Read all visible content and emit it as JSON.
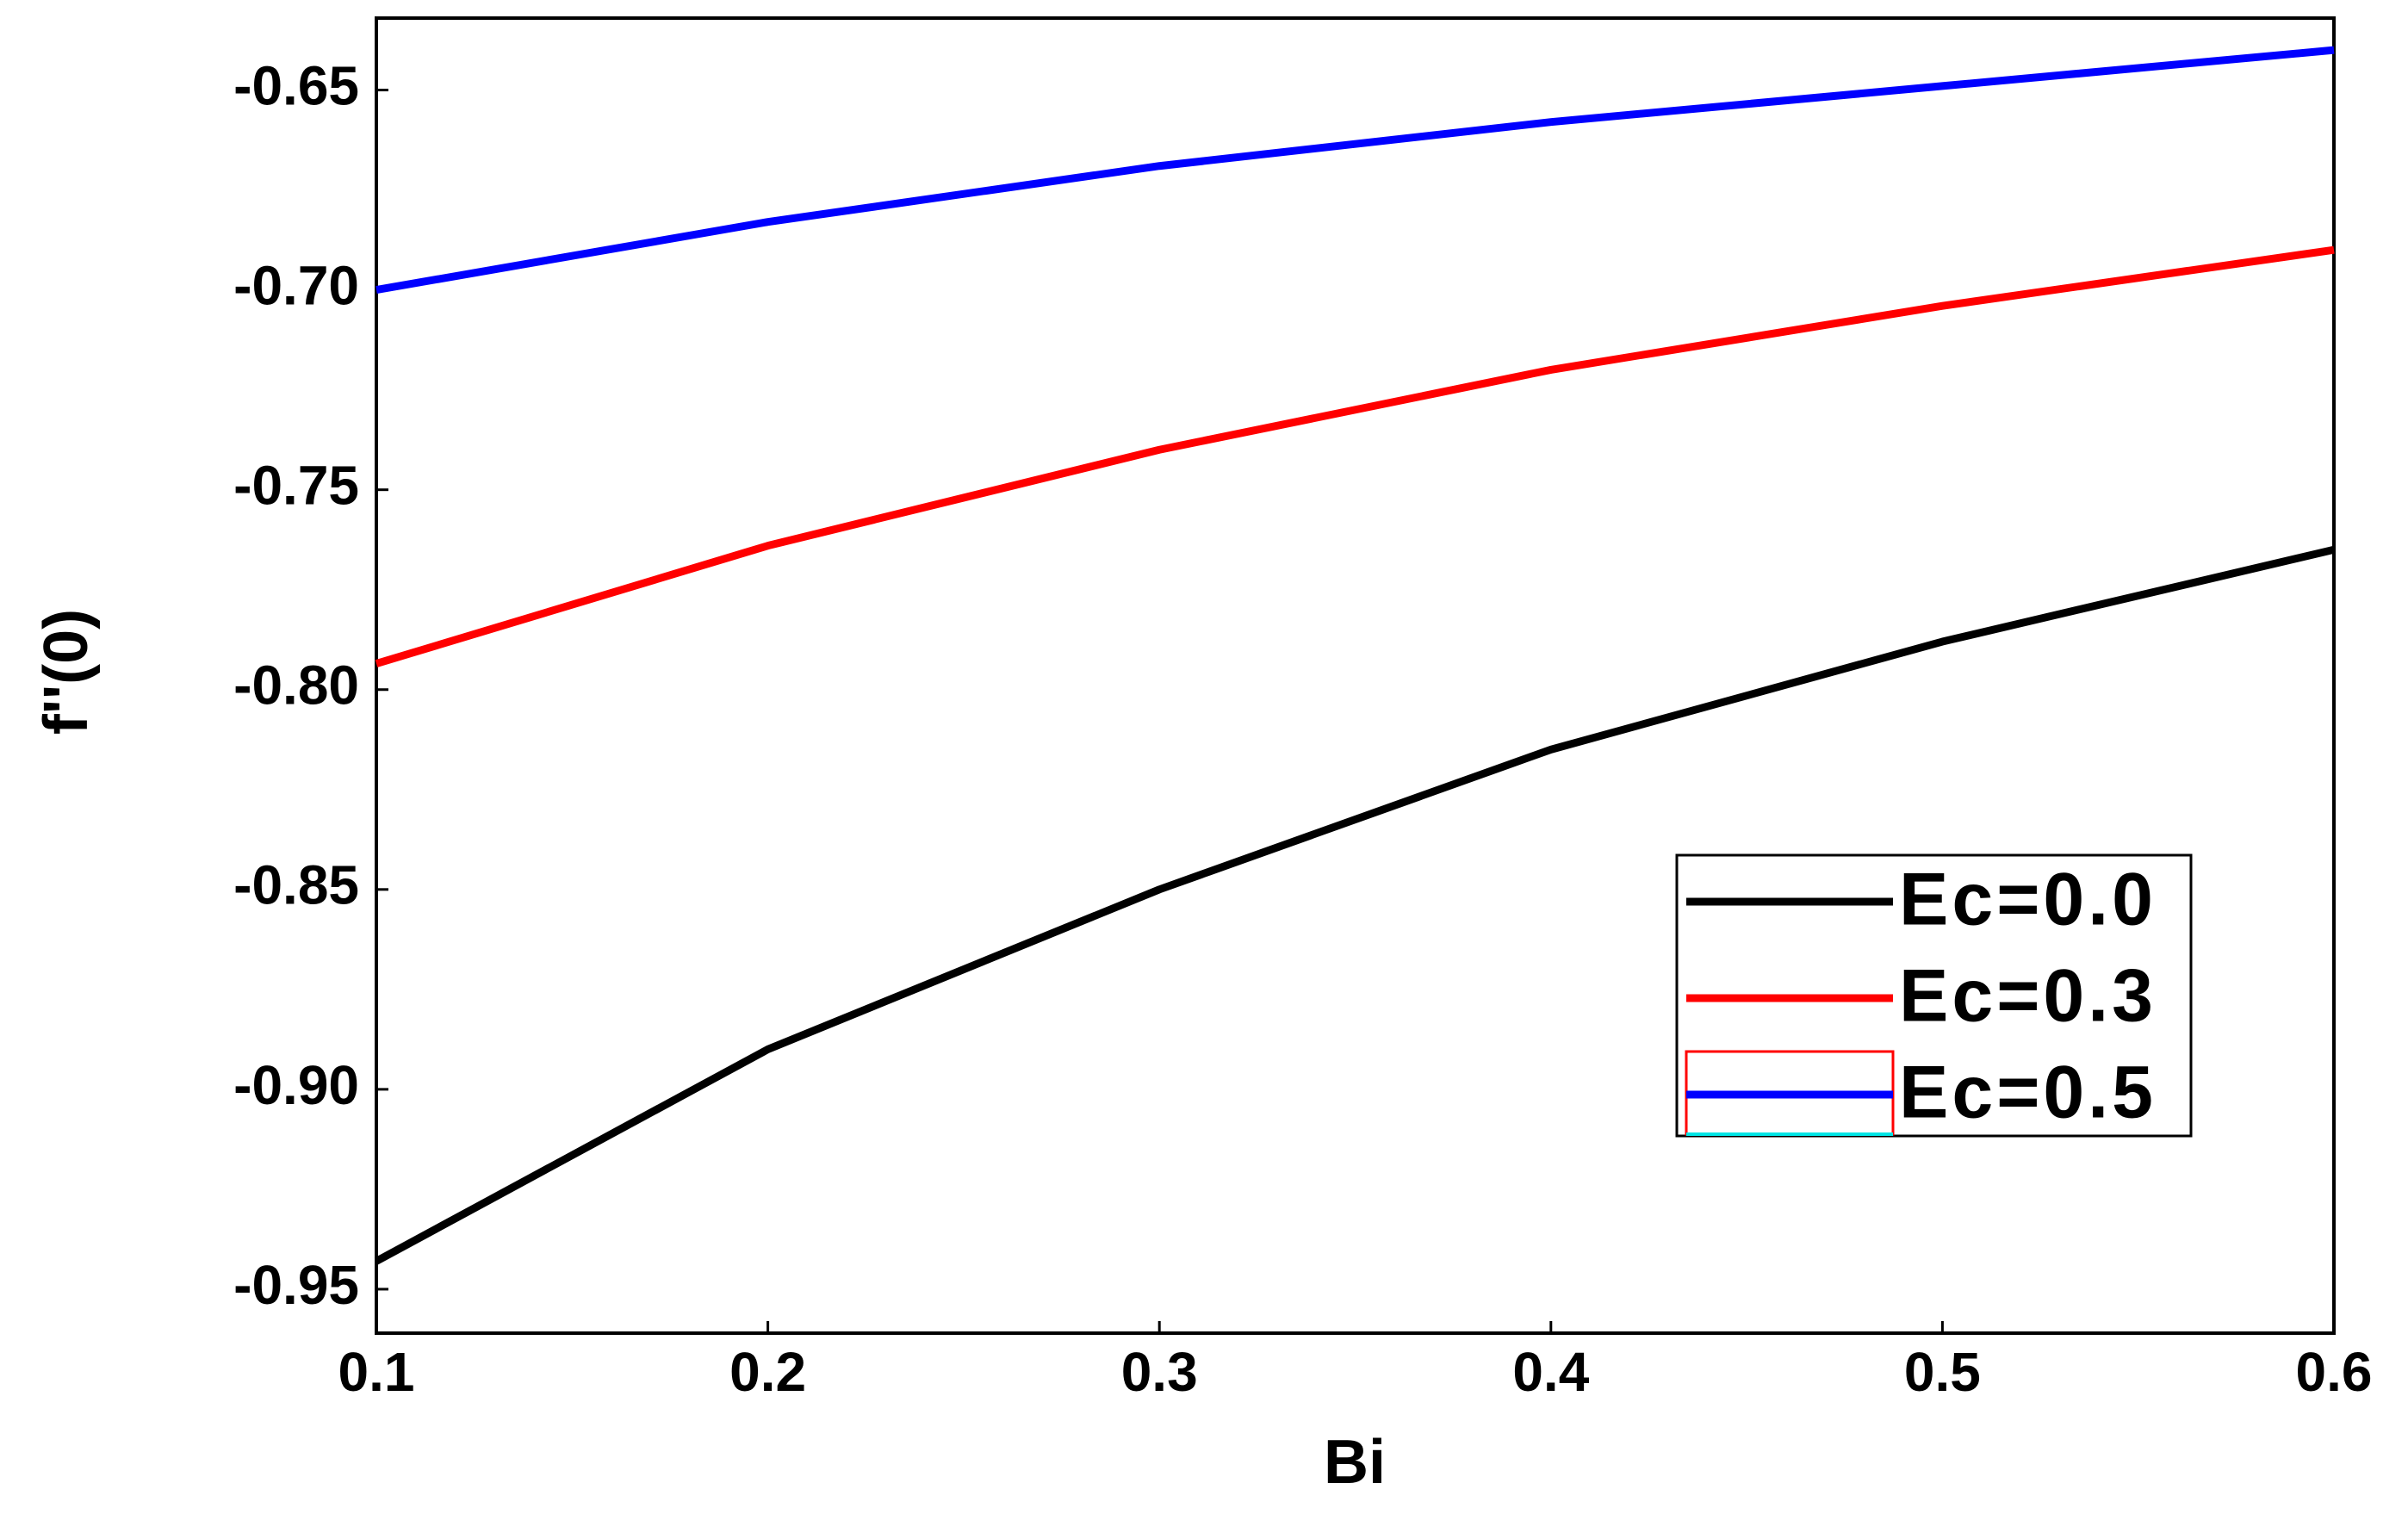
{
  "chart_data": {
    "type": "line",
    "xlabel": "Bi",
    "ylabel": "f''(0)",
    "x": [
      0.1,
      0.2,
      0.3,
      0.4,
      0.5,
      0.6
    ],
    "series": [
      {
        "name": "Ec=0.0",
        "color": "#000000",
        "values": [
          -0.943,
          -0.89,
          -0.85,
          -0.815,
          -0.788,
          -0.765
        ]
      },
      {
        "name": "Ec=0.3",
        "color": "#ff0000",
        "values": [
          -0.7935,
          -0.764,
          -0.74,
          -0.72,
          -0.704,
          -0.69
        ]
      },
      {
        "name": "Ec=0.5",
        "color": "#0000ff",
        "values": [
          -0.7,
          -0.683,
          -0.669,
          -0.658,
          -0.649,
          -0.64
        ]
      }
    ],
    "xlim": [
      0.1,
      0.6
    ],
    "xticks": [
      0.1,
      0.2,
      0.3,
      0.4,
      0.5,
      0.6
    ],
    "ylim": [
      -0.961,
      -0.632
    ],
    "yticks": [
      -0.65,
      {
        "value": -0.7,
        "label": "-0.70"
      },
      -0.75,
      {
        "value": -0.8,
        "label": "-0.80"
      },
      -0.85,
      {
        "value": -0.9,
        "label": "-0.90"
      },
      -0.95
    ],
    "grid": false,
    "legend": "lower right"
  }
}
